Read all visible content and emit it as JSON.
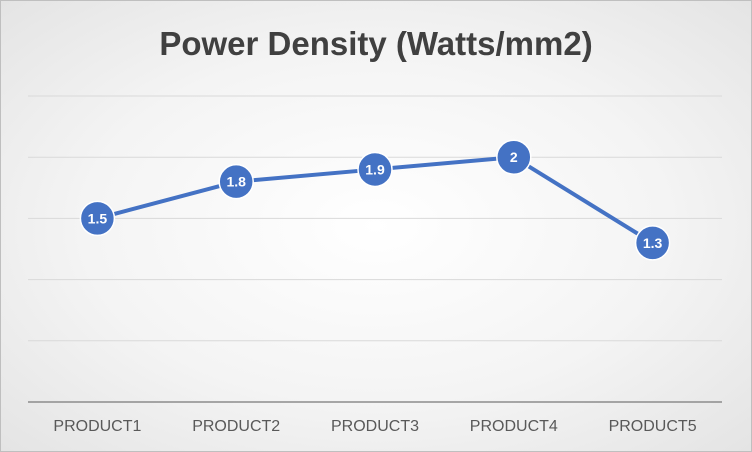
{
  "chart_data": {
    "type": "line",
    "title": "Power Density (Watts/mm2)",
    "xlabel": "",
    "ylabel": "",
    "categories": [
      "PRODUCT1",
      "PRODUCT2",
      "PRODUCT3",
      "PRODUCT4",
      "PRODUCT5"
    ],
    "series": [
      {
        "values": [
          1.5,
          1.8,
          1.9,
          2,
          1.3
        ],
        "color": "#4472c4"
      }
    ],
    "ylim": [
      0,
      2.5
    ],
    "y_gridlines": [
      0.5,
      1,
      1.5,
      2,
      2.5
    ],
    "grid": true,
    "legend": "none",
    "data_labels": true
  }
}
